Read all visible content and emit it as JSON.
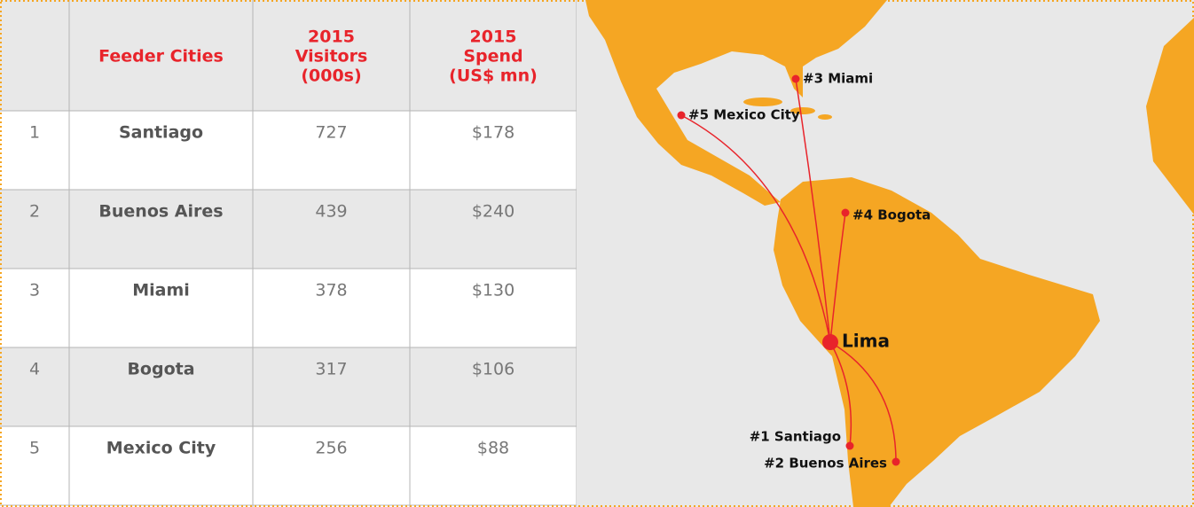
{
  "table": {
    "header": [
      [
        "Feeder Cities"
      ],
      [
        "2015",
        "Visitors",
        "(000s)"
      ],
      [
        "2015",
        "Spend",
        "(US$ mn)"
      ]
    ],
    "rows": [
      [
        "1",
        "Santiago",
        "727",
        "$178"
      ],
      [
        "2",
        "Buenos Aires",
        "439",
        "$240"
      ],
      [
        "3",
        "Miami",
        "378",
        "$130"
      ],
      [
        "4",
        "Bogota",
        "317",
        "$106"
      ],
      [
        "5",
        "Mexico City",
        "256",
        "$88"
      ]
    ]
  },
  "map": {
    "hub": "Lima",
    "labels": [
      "#1 Santiago",
      "#2 Buenos Aires",
      "#3 Miami",
      "#4 Bogota",
      "#5 Mexico City"
    ]
  }
}
